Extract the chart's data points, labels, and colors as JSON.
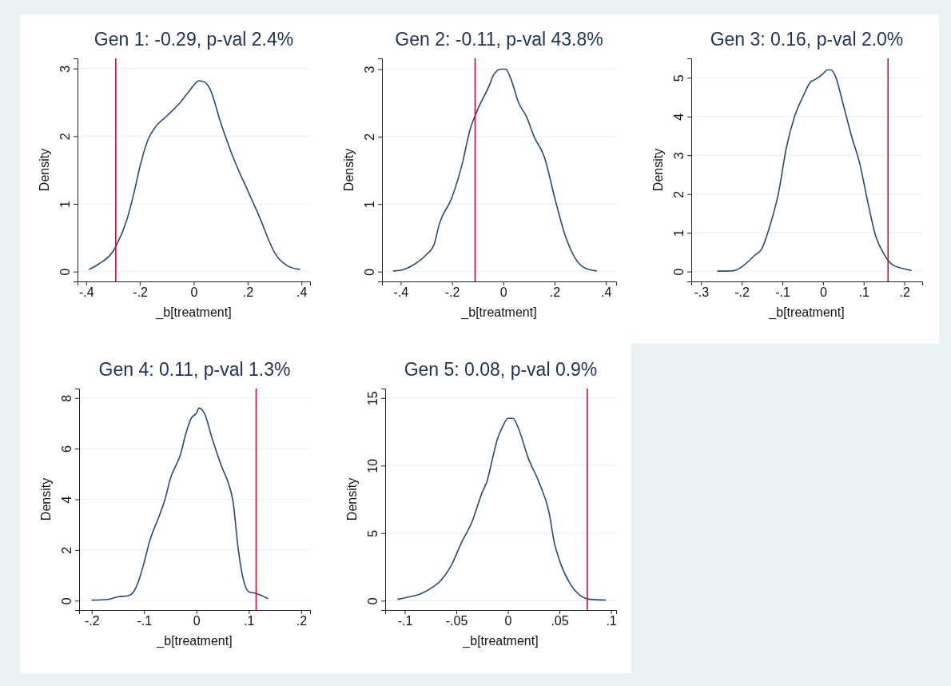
{
  "chart_data": [
    {
      "type": "line",
      "title": "Gen 1: -0.29, p-val 2.4%",
      "xlabel": "_b[treatment]",
      "ylabel": "Density",
      "grid": "y",
      "xlim": [
        -0.432,
        0.432
      ],
      "ylim": [
        -0.146,
        3.15
      ],
      "xticks": [
        {
          "value": -0.4,
          "label": "-.4"
        },
        {
          "value": -0.2,
          "label": "-.2"
        },
        {
          "value": 0,
          "label": "0"
        },
        {
          "value": 0.2,
          "label": ".2"
        },
        {
          "value": 0.4,
          "label": ".4"
        }
      ],
      "yticks": [
        0,
        1,
        2,
        3
      ],
      "ref_lines": [
        {
          "axis": "x",
          "value": -0.29,
          "color": "#c8102e"
        }
      ],
      "series": [
        {
          "color": "#2b4a70",
          "x": [
            -0.39,
            -0.35,
            -0.3,
            -0.29,
            -0.25,
            -0.22,
            -0.2,
            -0.17,
            -0.14,
            -0.1,
            -0.05,
            -0.02,
            0.02,
            0.04,
            0.06,
            0.1,
            0.15,
            0.2,
            0.25,
            0.28,
            0.3,
            0.35,
            0.395
          ],
          "values": [
            0.03,
            0.12,
            0.3,
            0.37,
            0.75,
            1.2,
            1.55,
            1.95,
            2.15,
            2.3,
            2.5,
            2.65,
            2.82,
            2.8,
            2.7,
            2.2,
            1.65,
            1.2,
            0.75,
            0.45,
            0.28,
            0.08,
            0.03
          ]
        }
      ]
    },
    {
      "type": "line",
      "title": "Gen 2: -0.11, p-val 43.8%",
      "xlabel": "_b[treatment]",
      "ylabel": "Density",
      "grid": "y",
      "xlim": [
        -0.473,
        0.44
      ],
      "ylim": [
        -0.146,
        3.16
      ],
      "xticks": [
        {
          "value": -0.4,
          "label": "-.4"
        },
        {
          "value": -0.2,
          "label": "-.2"
        },
        {
          "value": 0,
          "label": "0"
        },
        {
          "value": 0.2,
          "label": ".2"
        },
        {
          "value": 0.4,
          "label": ".4"
        }
      ],
      "yticks": [
        0,
        1,
        2,
        3
      ],
      "ref_lines": [
        {
          "axis": "x",
          "value": -0.11,
          "color": "#c8102e"
        }
      ],
      "series": [
        {
          "color": "#2b4a70",
          "x": [
            -0.43,
            -0.4,
            -0.35,
            -0.3,
            -0.27,
            -0.25,
            -0.2,
            -0.16,
            -0.13,
            -0.1,
            -0.05,
            -0.04,
            -0.01,
            0.01,
            0.03,
            0.06,
            0.09,
            0.12,
            0.16,
            0.2,
            0.24,
            0.28,
            0.32,
            0.365
          ],
          "values": [
            0.01,
            0.02,
            0.1,
            0.25,
            0.4,
            0.7,
            1.1,
            1.6,
            2.1,
            2.4,
            2.8,
            2.9,
            3.0,
            3.0,
            2.85,
            2.5,
            2.3,
            2.0,
            1.7,
            1.1,
            0.55,
            0.2,
            0.05,
            0.01
          ]
        }
      ]
    },
    {
      "type": "line",
      "title": "Gen 3: 0.16, p-val 2.0%",
      "xlabel": "_b[treatment]",
      "ylabel": "Density",
      "grid": "y",
      "xlim": [
        -0.324,
        0.244
      ],
      "ylim": [
        -0.255,
        5.5
      ],
      "xticks": [
        {
          "value": -0.3,
          "label": "-.3"
        },
        {
          "value": -0.2,
          "label": "-.2"
        },
        {
          "value": -0.1,
          "label": "-.1"
        },
        {
          "value": 0,
          "label": "0"
        },
        {
          "value": 0.1,
          "label": ".1"
        },
        {
          "value": 0.2,
          "label": ".2"
        }
      ],
      "yticks": [
        0,
        1,
        2,
        3,
        4,
        5
      ],
      "ref_lines": [
        {
          "axis": "x",
          "value": 0.16,
          "color": "#c8102e"
        }
      ],
      "series": [
        {
          "color": "#2b4a70",
          "x": [
            -0.26,
            -0.22,
            -0.2,
            -0.17,
            -0.15,
            -0.13,
            -0.11,
            -0.09,
            -0.07,
            -0.05,
            -0.03,
            -0.02,
            0,
            0.01,
            0.02,
            0.03,
            0.05,
            0.07,
            0.09,
            0.11,
            0.13,
            0.15,
            0.17,
            0.2,
            0.218
          ],
          "values": [
            0.01,
            0.02,
            0.12,
            0.4,
            0.6,
            1.2,
            2.0,
            3.2,
            4.0,
            4.5,
            4.9,
            4.95,
            5.1,
            5.2,
            5.2,
            5.05,
            4.3,
            3.5,
            2.8,
            1.8,
            0.9,
            0.45,
            0.18,
            0.07,
            0.03
          ]
        }
      ]
    },
    {
      "type": "line",
      "title": "Gen 4: 0.11, p-val 1.3%",
      "xlabel": "_b[treatment]",
      "ylabel": "Density",
      "grid": "y",
      "xlim": [
        -0.224,
        0.217
      ],
      "ylim": [
        -0.37,
        8.37
      ],
      "xticks": [
        {
          "value": -0.2,
          "label": "-.2"
        },
        {
          "value": -0.1,
          "label": "-.1"
        },
        {
          "value": 0,
          "label": "0"
        },
        {
          "value": 0.1,
          "label": ".1"
        },
        {
          "value": 0.2,
          "label": ".2"
        }
      ],
      "yticks": [
        0,
        2,
        4,
        6,
        8
      ],
      "ref_lines": [
        {
          "axis": "x",
          "value": 0.114,
          "color": "#c8102e"
        }
      ],
      "series": [
        {
          "color": "#2b4a70",
          "x": [
            -0.2,
            -0.17,
            -0.15,
            -0.13,
            -0.12,
            -0.11,
            -0.1,
            -0.09,
            -0.07,
            -0.06,
            -0.05,
            -0.03,
            -0.02,
            -0.01,
            0,
            0.005,
            0.015,
            0.03,
            0.05,
            0.06,
            0.07,
            0.08,
            0.09,
            0.1,
            0.115,
            0.137
          ],
          "values": [
            0.02,
            0.05,
            0.15,
            0.2,
            0.35,
            0.8,
            1.5,
            2.3,
            3.4,
            4.0,
            4.8,
            5.8,
            6.6,
            7.2,
            7.4,
            7.6,
            7.4,
            6.4,
            5.2,
            4.7,
            3.9,
            2.0,
            0.8,
            0.35,
            0.28,
            0.08
          ]
        }
      ]
    },
    {
      "type": "line",
      "title": "Gen 5: 0.08, p-val 0.9%",
      "xlabel": "_b[treatment]",
      "ylabel": "Density",
      "grid": "y",
      "xlim": [
        -0.119,
        0.105
      ],
      "ylim": [
        -0.69,
        15.7
      ],
      "xticks": [
        {
          "value": -0.1,
          "label": "-.1"
        },
        {
          "value": -0.05,
          "label": "-.05"
        },
        {
          "value": 0,
          "label": "0"
        },
        {
          "value": 0.05,
          "label": ".05"
        },
        {
          "value": 0.1,
          "label": ".1"
        }
      ],
      "yticks": [
        0,
        5,
        10,
        15
      ],
      "ref_lines": [
        {
          "axis": "x",
          "value": 0.077,
          "color": "#c8102e"
        }
      ],
      "series": [
        {
          "color": "#2b4a70",
          "x": [
            -0.107,
            -0.095,
            -0.085,
            -0.075,
            -0.065,
            -0.055,
            -0.045,
            -0.035,
            -0.025,
            -0.02,
            -0.015,
            -0.01,
            -0.005,
            0,
            0.005,
            0.01,
            0.02,
            0.03,
            0.04,
            0.045,
            0.05,
            0.06,
            0.07,
            0.08,
            0.095
          ],
          "values": [
            0.1,
            0.3,
            0.5,
            0.9,
            1.5,
            2.6,
            4.3,
            5.8,
            8.0,
            8.9,
            10.5,
            12.0,
            12.9,
            13.5,
            13.5,
            12.8,
            10.5,
            8.8,
            6.5,
            4.3,
            3.0,
            1.3,
            0.4,
            0.1,
            0.05
          ]
        }
      ]
    }
  ]
}
